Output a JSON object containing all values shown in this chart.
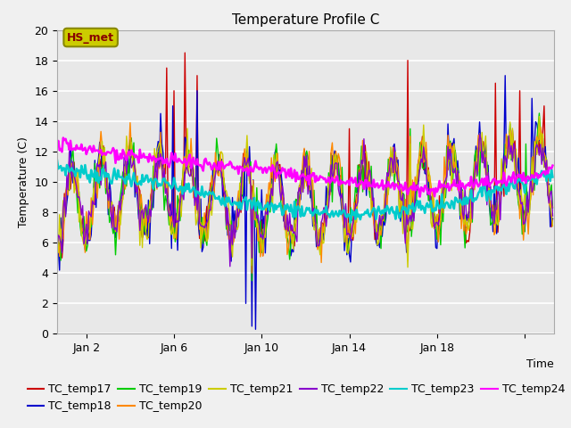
{
  "title": "Temperature Profile C",
  "xlabel": "Time",
  "ylabel": "Temperature (C)",
  "ylim": [
    0,
    20
  ],
  "xlim": [
    0,
    408
  ],
  "xtick_positions": [
    24,
    96,
    168,
    240,
    312,
    384
  ],
  "xtick_labels": [
    "Jan 2",
    "Jan 6",
    "Jan 10",
    "Jan 14",
    "Jan 18",
    ""
  ],
  "annotation_text": "HS_met",
  "series_colors": {
    "TC_temp17": "#cc0000",
    "TC_temp18": "#0000cc",
    "TC_temp19": "#00cc00",
    "TC_temp20": "#ff8800",
    "TC_temp21": "#cccc00",
    "TC_temp22": "#8800cc",
    "TC_temp23": "#00cccc",
    "TC_temp24": "#ff00ff"
  },
  "background_color": "#e8e8e8",
  "grid_color": "#ffffff",
  "legend_fontsize": 9,
  "title_fontsize": 11,
  "label_fontsize": 9,
  "annotation_box_facecolor": "#cccc00",
  "annotation_box_edgecolor": "#888800",
  "annotation_text_color": "#880000",
  "fig_facecolor": "#f0f0f0"
}
